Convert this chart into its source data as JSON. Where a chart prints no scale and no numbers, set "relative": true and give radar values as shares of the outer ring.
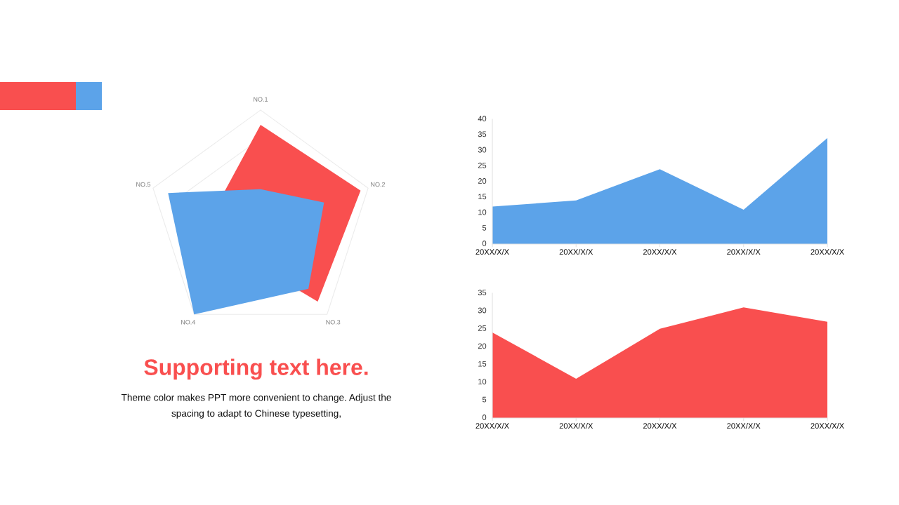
{
  "chart_data": [
    {
      "type": "radar",
      "categories": [
        "NO.1",
        "NO.2",
        "NO.3",
        "NO.4",
        "NO.5"
      ],
      "relative": true,
      "grid": true,
      "series": [
        {
          "color": "#f94f4f",
          "values": [
            0.87,
            0.93,
            0.86,
            0.34,
            0.42
          ]
        },
        {
          "color": "#5ca3e9",
          "values": [
            0.3,
            0.59,
            0.72,
            1.0,
            0.86
          ]
        }
      ]
    },
    {
      "type": "area",
      "categories": [
        "20XX/X/X",
        "20XX/X/X",
        "20XX/X/X",
        "20XX/X/X",
        "20XX/X/X"
      ],
      "ylim": [
        0,
        40
      ],
      "yticks": [
        0,
        5,
        10,
        15,
        20,
        25,
        30,
        35,
        40
      ],
      "series": [
        {
          "color": "#5ca3e9",
          "values": [
            12,
            14,
            24,
            11,
            34
          ]
        }
      ]
    },
    {
      "type": "area",
      "categories": [
        "20XX/X/X",
        "20XX/X/X",
        "20XX/X/X",
        "20XX/X/X",
        "20XX/X/X"
      ],
      "ylim": [
        0,
        35
      ],
      "yticks": [
        0,
        5,
        10,
        15,
        20,
        25,
        30,
        35
      ],
      "series": [
        {
          "color": "#f94f4f",
          "values": [
            24,
            11,
            25,
            31,
            27
          ]
        }
      ]
    },
    {
      "type": "other",
      "title": "Supporting text here.",
      "annotations": [
        "Theme color makes PPT more convenient to change. Adjust the spacing to adapt to Chinese typesetting,"
      ]
    }
  ]
}
